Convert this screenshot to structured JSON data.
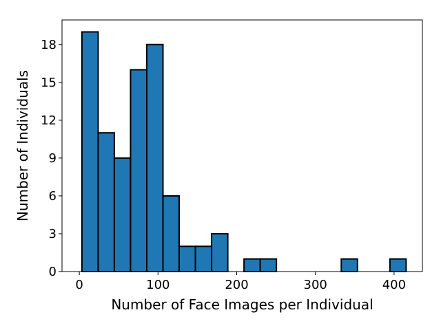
{
  "chart_data": {
    "type": "bar",
    "title": "",
    "xlabel": "Number of Face Images per Individual",
    "ylabel": "Number of Individuals",
    "xlim": [
      -22,
      436
    ],
    "ylim": [
      0,
      19.95
    ],
    "xticks": [
      0,
      100,
      200,
      300,
      400
    ],
    "yticks": [
      0,
      3,
      6,
      9,
      12,
      15,
      18
    ],
    "grid": false,
    "legend": "none",
    "bar_color": "#1f77b4",
    "edge_color": "#000000",
    "bins": [
      {
        "x0": 3.3,
        "x1": 23.9,
        "count": 19
      },
      {
        "x0": 23.9,
        "x1": 44.5,
        "count": 11
      },
      {
        "x0": 44.5,
        "x1": 65.1,
        "count": 9
      },
      {
        "x0": 65.1,
        "x1": 85.7,
        "count": 16
      },
      {
        "x0": 85.7,
        "x1": 106.3,
        "count": 18
      },
      {
        "x0": 106.3,
        "x1": 126.9,
        "count": 6
      },
      {
        "x0": 126.9,
        "x1": 147.5,
        "count": 2
      },
      {
        "x0": 147.5,
        "x1": 168.1,
        "count": 2
      },
      {
        "x0": 168.1,
        "x1": 188.7,
        "count": 3
      },
      {
        "x0": 188.7,
        "x1": 209.3,
        "count": 0
      },
      {
        "x0": 209.3,
        "x1": 229.9,
        "count": 1
      },
      {
        "x0": 229.9,
        "x1": 250.5,
        "count": 1
      },
      {
        "x0": 250.5,
        "x1": 271.1,
        "count": 0
      },
      {
        "x0": 271.1,
        "x1": 291.7,
        "count": 0
      },
      {
        "x0": 291.7,
        "x1": 312.3,
        "count": 0
      },
      {
        "x0": 312.3,
        "x1": 332.9,
        "count": 0
      },
      {
        "x0": 332.9,
        "x1": 353.5,
        "count": 1
      },
      {
        "x0": 353.5,
        "x1": 374.1,
        "count": 0
      },
      {
        "x0": 374.1,
        "x1": 394.7,
        "count": 0
      },
      {
        "x0": 394.7,
        "x1": 415.3,
        "count": 1
      }
    ]
  }
}
